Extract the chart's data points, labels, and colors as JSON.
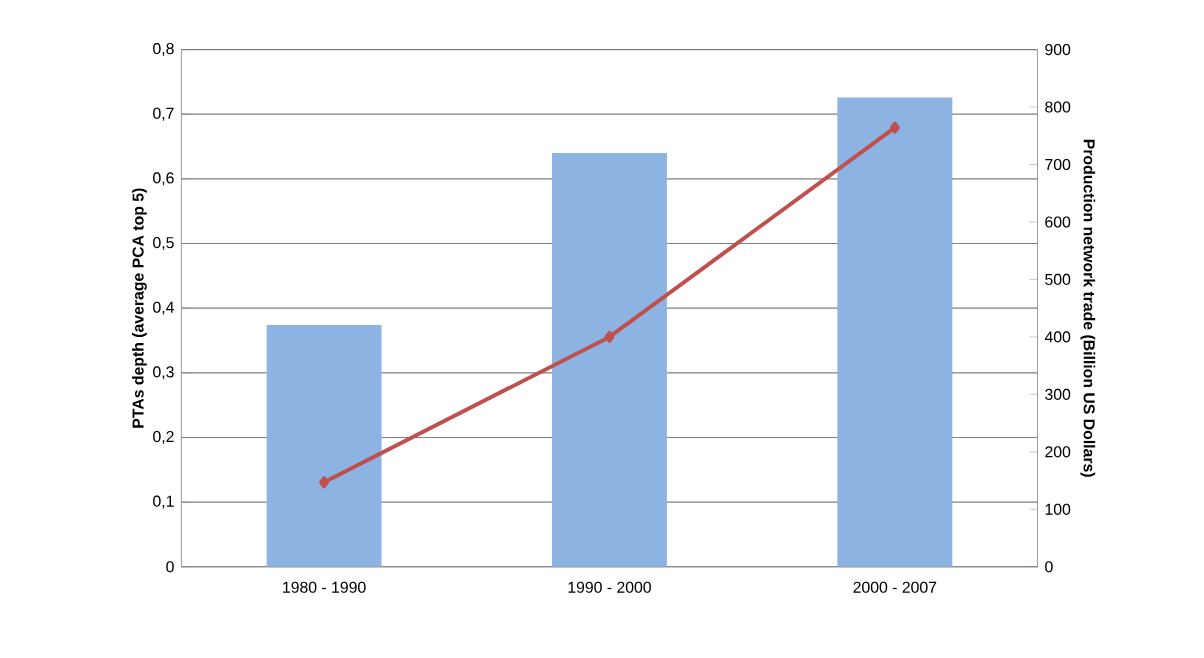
{
  "chart_data": {
    "type": "bar",
    "ylabel": "PTAs depth (average PCA top 5)",
    "y2label": "Production network trade (Billion US Dollars)",
    "categories": [
      "1980 - 1990",
      "1990 - 2000",
      "2000 - 2007"
    ],
    "series": [
      {
        "color": "#8db3e2",
        "values": [
          0.374,
          0.64,
          0.726
        ]
      },
      {
        "type": "line",
        "axis": "y2",
        "color": "#c0504d",
        "marker": "diamond",
        "values": [
          147,
          400,
          764
        ]
      }
    ],
    "ylim": [
      0,
      0.8
    ],
    "yticks": [
      {
        "value": 0,
        "label": "0"
      },
      {
        "value": 0.1,
        "label": "0,1"
      },
      {
        "value": 0.2,
        "label": "0,2"
      },
      {
        "value": 0.3,
        "label": "0,3"
      },
      {
        "value": 0.4,
        "label": "0,4"
      },
      {
        "value": 0.5,
        "label": "0,5"
      },
      {
        "value": 0.6,
        "label": "0,6"
      },
      {
        "value": 0.7,
        "label": "0,7"
      },
      {
        "value": 0.8,
        "label": "0,8"
      }
    ],
    "y2lim": [
      0,
      900
    ],
    "y2ticks": [
      0,
      100,
      200,
      300,
      400,
      500,
      600,
      700,
      800,
      900
    ],
    "grid": "y"
  }
}
